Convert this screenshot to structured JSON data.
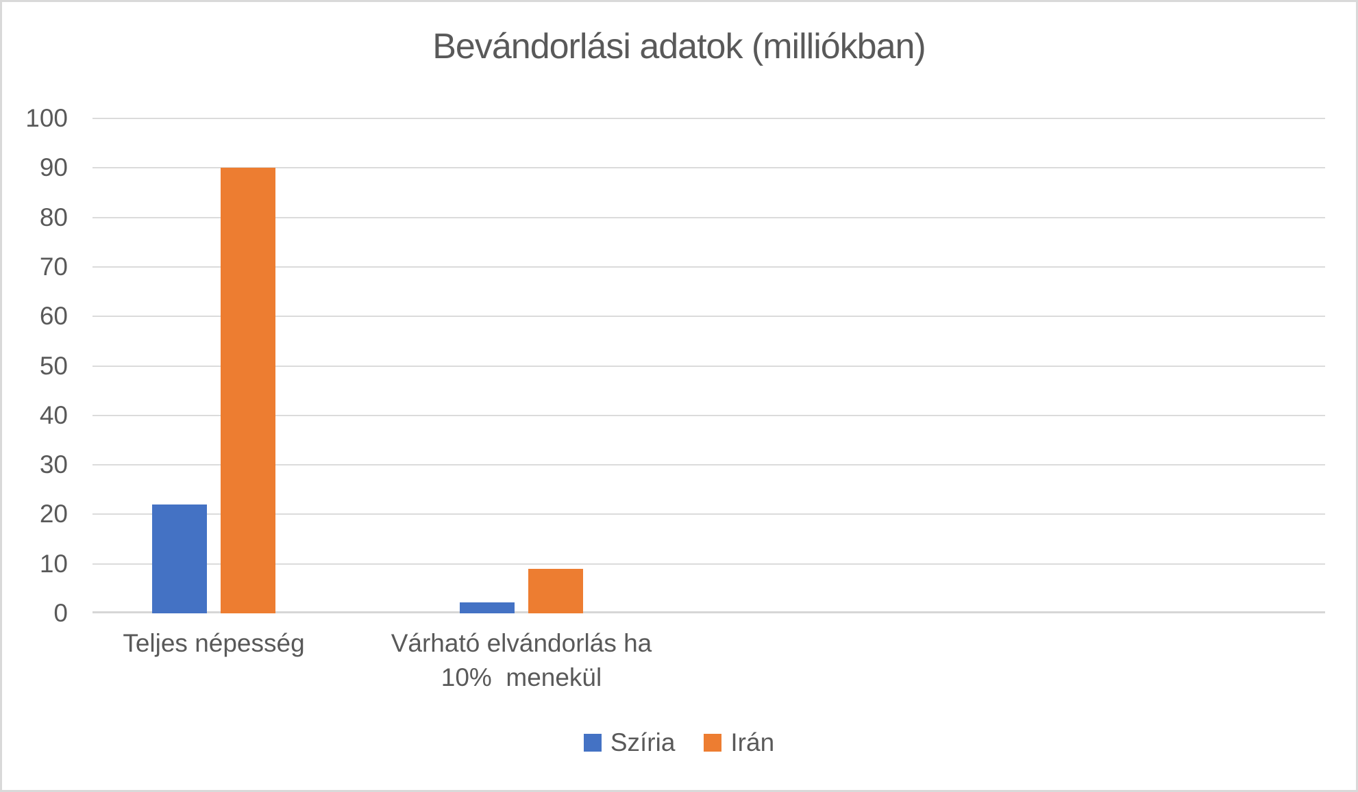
{
  "page": {
    "background": "#FFFFFF",
    "border_color": "#D9D9D9"
  },
  "chart_data": {
    "type": "bar",
    "title": "Bevándorlási adatok (milliókban)",
    "categories": [
      "Teljes népesség",
      "Várható elvándorlás ha 10%  menekül"
    ],
    "category_label_lines": [
      [
        "Teljes népesség"
      ],
      [
        "Várható elvándorlás ha",
        "10%  menekül"
      ]
    ],
    "series": [
      {
        "name": "Szíria",
        "color": "#4472C4",
        "values": [
          22,
          2.2
        ]
      },
      {
        "name": "Irán",
        "color": "#ED7D31",
        "values": [
          90,
          9
        ]
      }
    ],
    "ylim": [
      0,
      100
    ],
    "yticks": [
      0,
      10,
      20,
      30,
      40,
      50,
      60,
      70,
      80,
      90,
      100
    ],
    "xlabel": "",
    "ylabel": "",
    "grid": true,
    "legend_position": "bottom",
    "text_color": "#595959",
    "gridline_color": "#DBDBDB"
  }
}
